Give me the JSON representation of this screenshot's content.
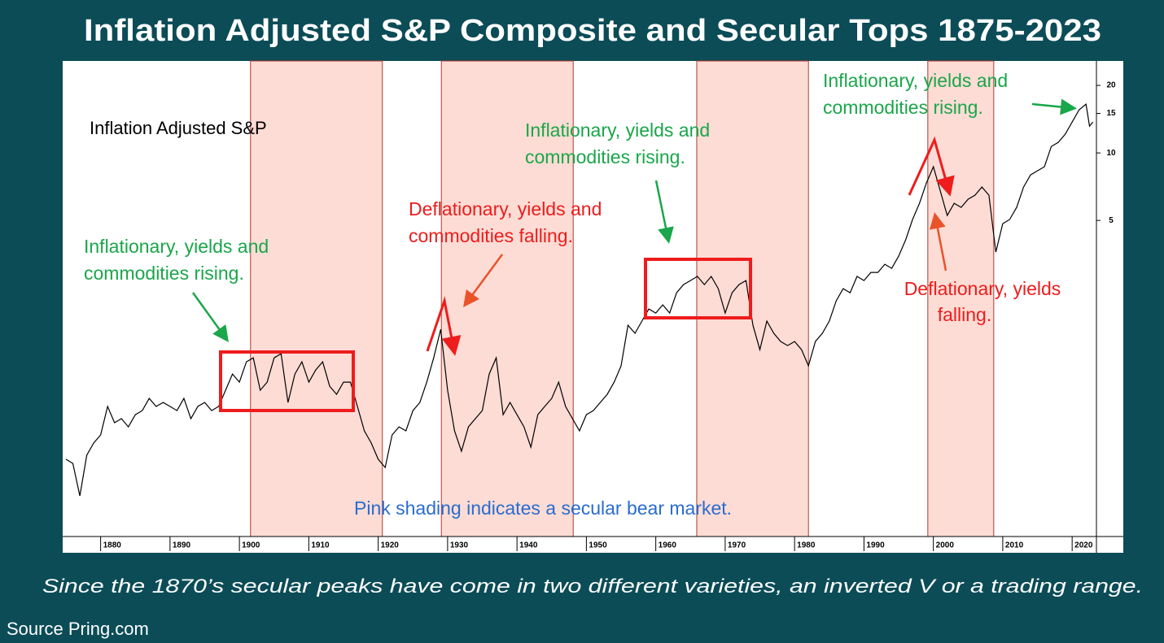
{
  "chart_data": {
    "type": "line",
    "title": "Inflation Adjusted S&P Composite and Secular Tops 1875-2023",
    "subtitle": "Since the 1870’s secular peaks have come in two different varieties, an inverted V or a trading range.",
    "source": "Source Pring.com",
    "series_label": "Inflation Adjusted S&P",
    "note": "Pink shading indicates a secular bear market.",
    "annotations": [
      {
        "lines": [
          "Inflationary, yields and",
          "commodities rising."
        ]
      },
      {
        "lines": [
          "Deflationary, yields and",
          "commodities falling."
        ]
      },
      {
        "lines": [
          "Inflationary, yields and",
          "commodities rising."
        ]
      },
      {
        "lines": [
          "Inflationary, yields and",
          "commodities rising."
        ]
      },
      {
        "lines": [
          "Deflationary, yields",
          "falling."
        ]
      }
    ],
    "color": "#000000",
    "shade_color": "#fcdcd5",
    "shaded_ranges": [
      [
        1901.6,
        1920.6
      ],
      [
        1929.1,
        1948.1
      ],
      [
        1965.9,
        1982.0
      ],
      [
        1999.2,
        2008.7
      ]
    ],
    "log_y": true,
    "xlim": [
      1875,
      2023.5
    ],
    "xticks": [
      1880,
      1890,
      1900,
      1910,
      1920,
      1930,
      1940,
      1950,
      1960,
      1970,
      1980,
      1990,
      2000,
      2010,
      2020
    ],
    "ylim": [
      0.195,
      25.7
    ],
    "yticks": [
      5,
      10,
      15,
      20
    ],
    "x": [
      1875,
      1876,
      1877,
      1878,
      1879,
      1880,
      1881,
      1882,
      1883,
      1884,
      1885,
      1886,
      1887,
      1888,
      1889,
      1890,
      1891,
      1892,
      1893,
      1894,
      1895,
      1896,
      1897,
      1898,
      1899,
      1900,
      1901,
      1902,
      1903,
      1904,
      1905,
      1906,
      1907,
      1908,
      1909,
      1910,
      1911,
      1912,
      1913,
      1914,
      1915,
      1916,
      1917,
      1918,
      1919,
      1920,
      1921,
      1922,
      1923,
      1924,
      1925,
      1926,
      1927,
      1928,
      1929,
      1930,
      1931,
      1932,
      1933,
      1934,
      1935,
      1936,
      1937,
      1938,
      1939,
      1940,
      1941,
      1942,
      1943,
      1944,
      1945,
      1946,
      1947,
      1948,
      1949,
      1950,
      1951,
      1952,
      1953,
      1954,
      1955,
      1956,
      1957,
      1958,
      1959,
      1960,
      1961,
      1962,
      1963,
      1964,
      1965,
      1966,
      1967,
      1968,
      1969,
      1970,
      1971,
      1972,
      1973,
      1974,
      1975,
      1976,
      1977,
      1978,
      1979,
      1980,
      1981,
      1982,
      1983,
      1984,
      1985,
      1986,
      1987,
      1988,
      1989,
      1990,
      1991,
      1992,
      1993,
      1994,
      1995,
      1996,
      1997,
      1998,
      1999,
      2000,
      2001,
      2002,
      2003,
      2004,
      2005,
      2006,
      2007,
      2008,
      2009,
      2010,
      2011,
      2012,
      2013,
      2014,
      2015,
      2016,
      2017,
      2018,
      2019,
      2020,
      2021,
      2022,
      2022.5,
      2023
    ],
    "values": [
      0.431,
      0.413,
      0.296,
      0.449,
      0.509,
      0.553,
      0.741,
      0.627,
      0.654,
      0.601,
      0.681,
      0.71,
      0.805,
      0.741,
      0.772,
      0.741,
      0.71,
      0.805,
      0.654,
      0.741,
      0.772,
      0.71,
      0.741,
      0.875,
      1.034,
      0.951,
      1.172,
      1.221,
      0.875,
      0.951,
      1.221,
      1.274,
      0.772,
      1.034,
      1.172,
      0.951,
      1.078,
      1.172,
      0.912,
      0.839,
      0.951,
      0.951,
      0.741,
      0.577,
      0.509,
      0.431,
      0.396,
      0.553,
      0.601,
      0.577,
      0.71,
      0.772,
      0.951,
      1.221,
      1.636,
      0.875,
      0.577,
      0.468,
      0.601,
      0.654,
      0.71,
      1.034,
      1.221,
      0.681,
      0.772,
      0.681,
      0.601,
      0.488,
      0.681,
      0.741,
      0.805,
      0.951,
      0.741,
      0.654,
      0.577,
      0.681,
      0.71,
      0.772,
      0.839,
      0.951,
      1.124,
      1.706,
      1.57,
      1.779,
      2.016,
      1.933,
      2.102,
      1.933,
      2.382,
      2.588,
      2.699,
      2.815,
      2.588,
      2.815,
      2.482,
      1.933,
      2.382,
      2.588,
      2.699,
      1.706,
      1.328,
      1.779,
      1.57,
      1.443,
      1.384,
      1.443,
      1.328,
      1.124,
      1.443,
      1.57,
      1.779,
      2.19,
      2.482,
      2.382,
      2.815,
      2.699,
      2.933,
      2.933,
      3.19,
      3.059,
      3.466,
      4.096,
      5.048,
      5.96,
      7.344,
      8.679,
      6.759,
      5.26,
      5.96,
      5.72,
      6.216,
      6.482,
      7.044,
      6.482,
      3.614,
      4.84,
      5.048,
      5.72,
      7.044,
      7.981,
      8.323,
      8.679,
      10.69,
      11.14,
      12.11,
      13.73,
      15.56,
      16.5,
      13.17,
      13.73
    ]
  }
}
